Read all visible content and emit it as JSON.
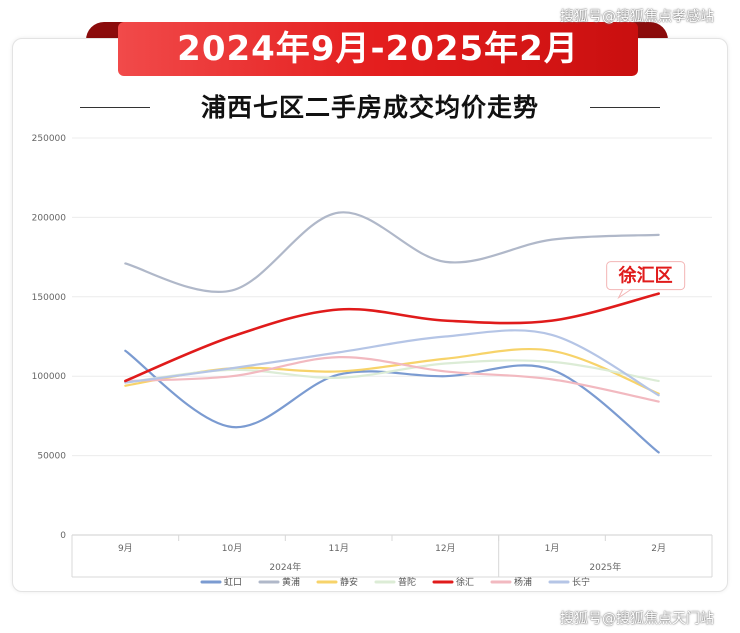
{
  "banner": {
    "title": "2024年9月-2025年2月"
  },
  "heading": {
    "title": "浦西七区二手房成交均价走势"
  },
  "watermarks": {
    "top": "搜狐号@搜狐焦点孝感站",
    "bottom": "搜狐号@搜狐焦点天门站"
  },
  "colors": {
    "banner": "#e41e1e",
    "highlight": "#e01b1b"
  },
  "chart_data": {
    "type": "line",
    "categories": [
      "9月",
      "10月",
      "11月",
      "12月",
      "1月",
      "2月"
    ],
    "year_groups": [
      {
        "label": "2024年",
        "from": 0,
        "to": 3
      },
      {
        "label": "2025年",
        "from": 4,
        "to": 5
      }
    ],
    "ylim": [
      0,
      250000
    ],
    "yticks": [
      0,
      50000,
      100000,
      150000,
      200000,
      250000
    ],
    "grid": true,
    "legend_position": "bottom",
    "annotation": {
      "text": "徐汇区",
      "series": "徐汇"
    },
    "series": [
      {
        "name": "虹口",
        "color": "#7b9bd1",
        "values": [
          116000,
          68000,
          101000,
          100000,
          104000,
          52000
        ]
      },
      {
        "name": "黄浦",
        "color": "#b0b8c9",
        "values": [
          171000,
          154000,
          203000,
          172000,
          186000,
          189000
        ]
      },
      {
        "name": "静安",
        "color": "#f7d36a",
        "values": [
          94000,
          105000,
          103000,
          111000,
          116000,
          89000
        ]
      },
      {
        "name": "普陀",
        "color": "#dcecd6",
        "values": [
          96000,
          104000,
          99000,
          108000,
          109000,
          97000
        ]
      },
      {
        "name": "徐汇",
        "color": "#e01b1b",
        "values": [
          97000,
          125000,
          142000,
          135000,
          135000,
          152000
        ]
      },
      {
        "name": "杨浦",
        "color": "#f2b9c0",
        "values": [
          97000,
          100000,
          112000,
          103000,
          98000,
          84000
        ]
      },
      {
        "name": "长宁",
        "color": "#b5c5e6",
        "values": [
          96000,
          105000,
          115000,
          125000,
          126000,
          88000
        ]
      }
    ]
  }
}
